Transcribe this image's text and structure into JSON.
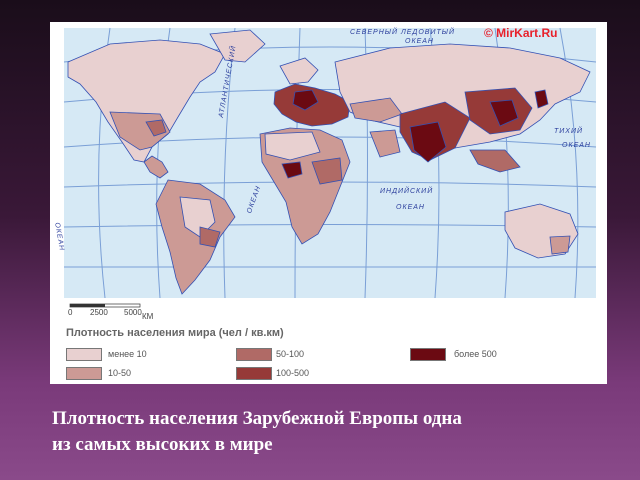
{
  "map": {
    "copyright": "© MirKart.Ru",
    "oceans": {
      "north": [
        "СЕВЕРНЫЙ ЛЕДОВИТЫЙ",
        "ОКЕАН"
      ],
      "atlantic": "АТЛАНТИЧЕСКИЙ",
      "okean_atlantic": "ОКЕАН",
      "indian": [
        "ИНДИЙСКИЙ",
        "ОКЕАН"
      ],
      "pacific_east": [
        "ТИХИЙ",
        "ОКЕАН"
      ],
      "pacific_west": "ОКЕАН"
    },
    "scale": {
      "ticks": [
        "0",
        "2500",
        "5000"
      ],
      "unit": "КМ"
    },
    "colors": {
      "ocean": "#d6e9f5",
      "grid": "#7a9fd6",
      "coast": "#3350b3",
      "under_10": "#e8d0d0",
      "d10_50": "#cc9a95",
      "d50_100": "#b06a66",
      "d100_500": "#963a38",
      "over_500": "#6b0a12"
    }
  },
  "legend": {
    "title": "Плотность населения мира (чел / кв.км)",
    "items": [
      {
        "label": "менее 10",
        "color": "#e8d0d0"
      },
      {
        "label": "10-50",
        "color": "#cc9a95"
      },
      {
        "label": "50-100",
        "color": "#b06a66"
      },
      {
        "label": "100-500",
        "color": "#963a38"
      },
      {
        "label": "более 500",
        "color": "#6b0a12"
      }
    ]
  },
  "caption": {
    "line1": "Плотность населения Зарубежной Европы одна",
    "line2": "из самых высоких в мире"
  }
}
